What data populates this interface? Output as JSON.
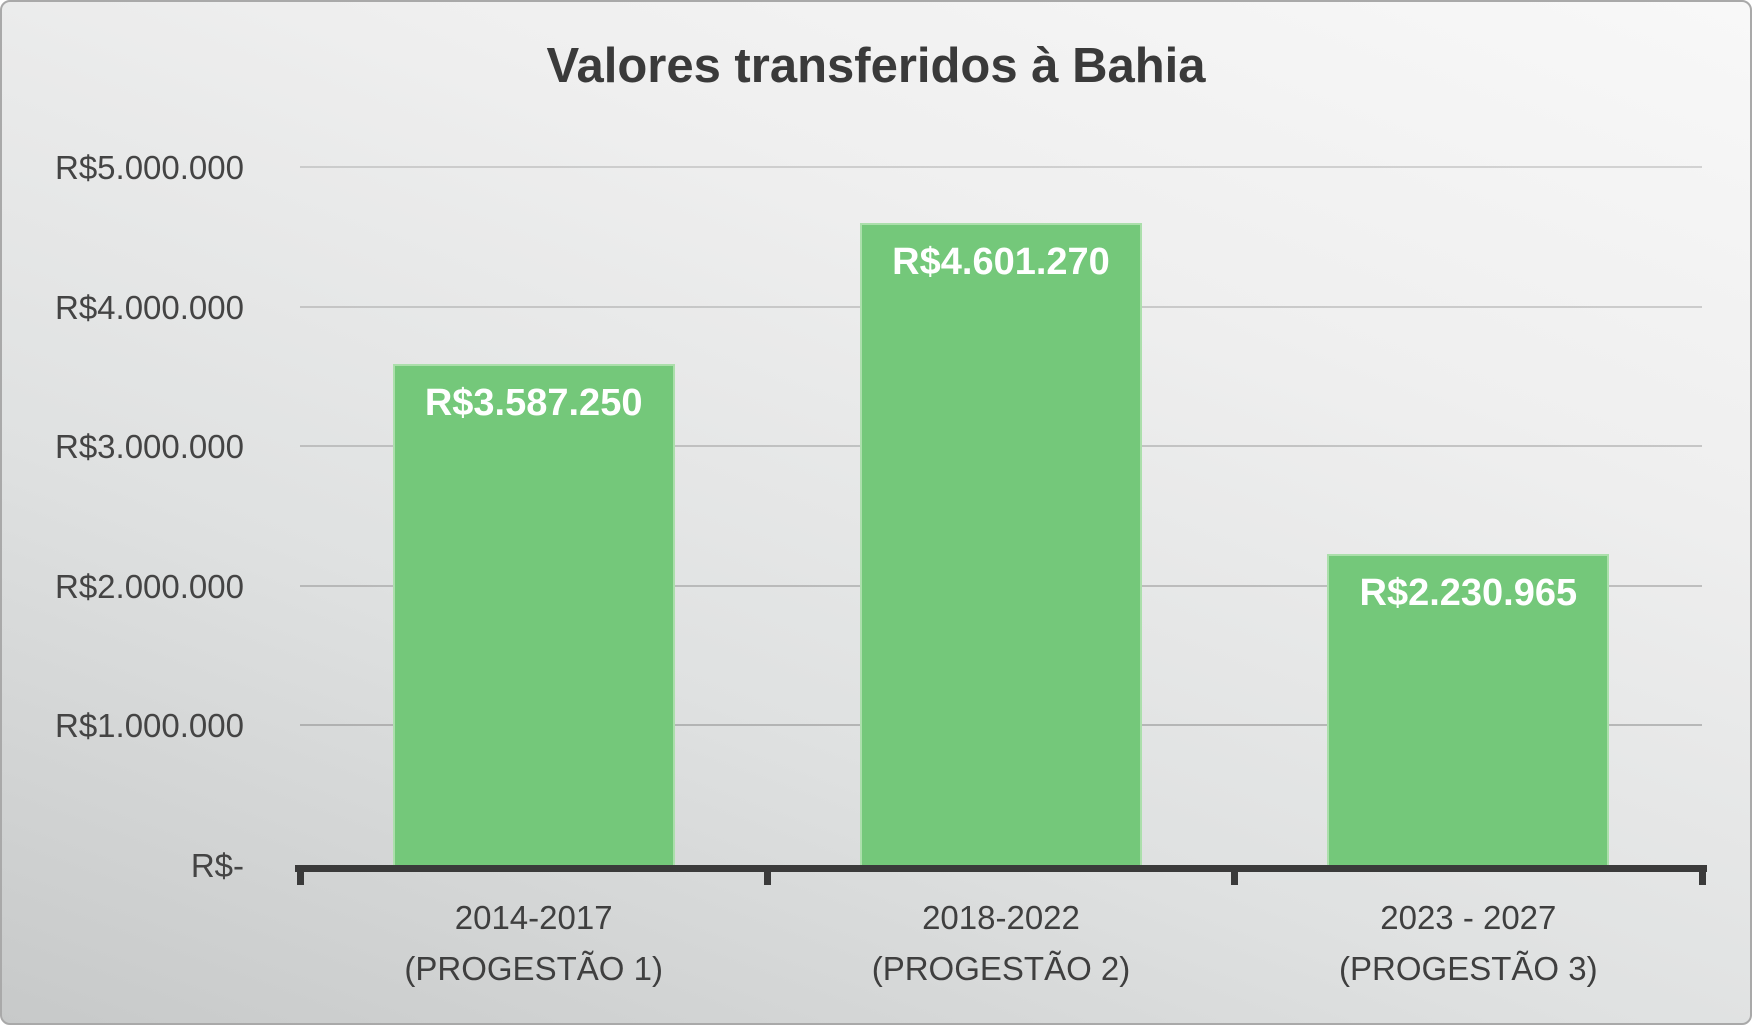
{
  "chart_data": {
    "type": "bar",
    "title": "Valores transferidos à Bahia",
    "categories": [
      "2014-2017\n(PROGESTÃO 1)",
      "2018-2022\n(PROGESTÃO 2)",
      "2023 - 2027\n(PROGESTÃO 3)"
    ],
    "values": [
      3587250,
      4601270,
      2230965
    ],
    "bar_labels": [
      "R$3.587.250",
      "R$4.601.270",
      "R$2.230.965"
    ],
    "y_ticks": [
      {
        "label": "R$5.000.000",
        "value": 5000000
      },
      {
        "label": "R$4.000.000",
        "value": 4000000
      },
      {
        "label": "R$3.000.000",
        "value": 3000000
      },
      {
        "label": "R$2.000.000",
        "value": 2000000
      },
      {
        "label": "R$1.000.000",
        "value": 1000000
      },
      {
        "label": "R$-",
        "value": 0
      }
    ],
    "ylim": [
      0,
      5000000
    ],
    "xlabel": "",
    "ylabel": "",
    "grid": true,
    "legend": null,
    "colors": {
      "bar_fill": "#74c87a",
      "bar_border": "#abdfab",
      "bar_label_text": "#ffffff",
      "axis_line": "#3a3a3a",
      "grid_line": "#8f8f8f",
      "text": "#404040"
    }
  }
}
